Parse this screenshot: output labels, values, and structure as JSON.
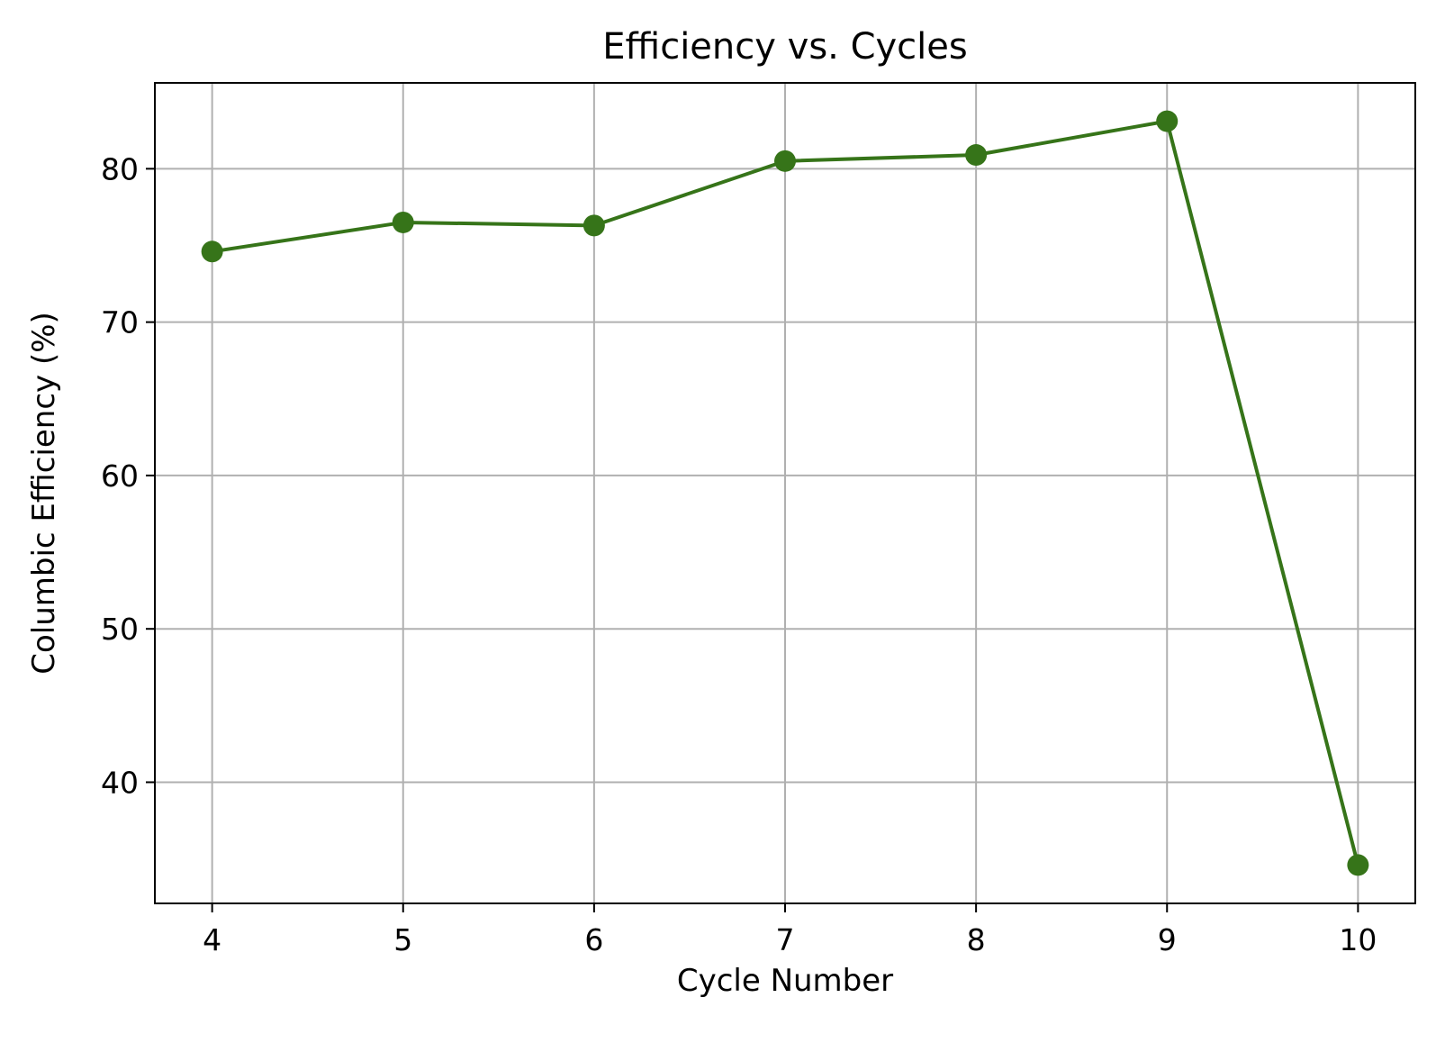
{
  "chart_data": {
    "type": "line",
    "title": "Efficiency vs. Cycles",
    "xlabel": "Cycle Number",
    "ylabel": "Columbic Efficiency (%)",
    "x": [
      4,
      5,
      6,
      7,
      8,
      9,
      10
    ],
    "series": [
      {
        "values": [
          74.6,
          76.5,
          76.3,
          80.5,
          80.9,
          83.1,
          34.6
        ]
      }
    ],
    "xlim": [
      3.7,
      10.3
    ],
    "ylim": [
      32.1,
      85.6
    ],
    "xticks": [
      4,
      5,
      6,
      7,
      8,
      9,
      10
    ],
    "yticks": [
      40,
      50,
      60,
      70,
      80
    ],
    "grid": true,
    "markers": true,
    "line_color": "#367419",
    "grid_color": "#b0b0b0"
  }
}
